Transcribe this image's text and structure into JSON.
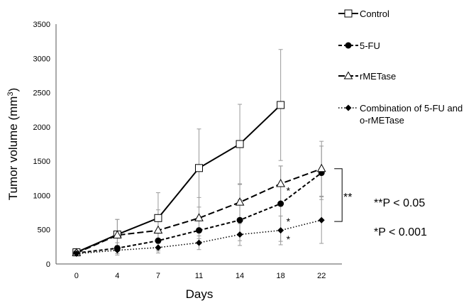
{
  "chart_data": {
    "type": "line",
    "xlabel": "Days",
    "ylabel_main": "Tumor volume (mm",
    "ylabel_sup": "3",
    "ylabel_close": ")",
    "ylim": [
      0,
      3500
    ],
    "yticks": [
      0,
      500,
      1000,
      1500,
      2000,
      2500,
      3000,
      3500
    ],
    "categories": [
      "0",
      "4",
      "7",
      "11",
      "14",
      "18",
      "22"
    ],
    "grid": false,
    "legend_position": "top-right",
    "series": [
      {
        "name": "Control",
        "marker": "open-square",
        "dash": "solid",
        "values": [
          170,
          430,
          670,
          1400,
          1750,
          2320,
          null
        ],
        "errors": [
          30,
          220,
          370,
          570,
          580,
          810,
          null
        ]
      },
      {
        "name": "5-FU",
        "marker": "filled-circle",
        "dash": "short-dash",
        "values": [
          160,
          230,
          340,
          490,
          640,
          880,
          1330
        ],
        "errors": [
          20,
          80,
          130,
          200,
          300,
          550,
          390
        ]
      },
      {
        "name": "rMETase",
        "legend_label": "rMETase",
        "marker": "open-triangle",
        "dash": "long-dash",
        "values": [
          160,
          420,
          490,
          670,
          900,
          1170,
          1390
        ],
        "errors": [
          20,
          230,
          300,
          300,
          260,
          260,
          400
        ]
      },
      {
        "name": "Combination of 5-FU and o-rMETase",
        "legend_lines": [
          "Combination of 5-FU and",
          "o-rMETase"
        ],
        "marker": "filled-diamond",
        "dash": "dotted",
        "values": [
          150,
          200,
          240,
          310,
          430,
          490,
          640
        ],
        "errors": [
          20,
          70,
          80,
          100,
          160,
          210,
          340
        ]
      }
    ],
    "annotations": {
      "double_star": "**",
      "single_star": "*",
      "single_star_points": [
        {
          "x": "18",
          "y": 1070
        },
        {
          "x": "18",
          "y": 620
        },
        {
          "x": "18",
          "y": 360
        }
      ],
      "bracket_range": [
        620,
        1390
      ],
      "sig_lines": [
        "**P < 0.05",
        "*P < 0.001"
      ]
    }
  }
}
